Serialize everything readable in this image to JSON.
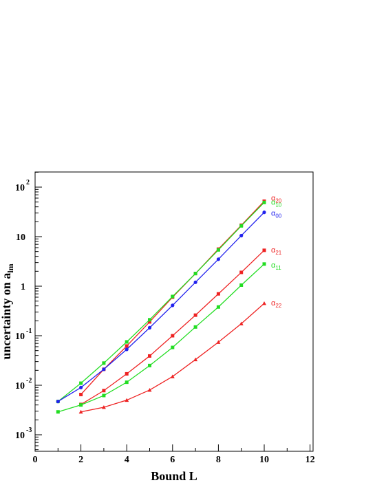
{
  "chart_data": {
    "type": "line",
    "title": "",
    "xlabel": "Bound L",
    "ylabel": "uncertainty on a",
    "ylabel_sub": "lm",
    "xlim": [
      0,
      12
    ],
    "ylim": [
      0.0005,
      200
    ],
    "yscale": "log",
    "grid": false,
    "x_ticks": [
      0,
      2,
      4,
      6,
      8,
      10,
      12
    ],
    "y_ticks": [
      {
        "value": 0.001,
        "base": "10",
        "exp": "-3"
      },
      {
        "value": 0.01,
        "base": "10",
        "exp": "-2"
      },
      {
        "value": 0.1,
        "base": "10",
        "exp": "-1"
      },
      {
        "value": 1,
        "base": "1",
        "exp": ""
      },
      {
        "value": 10,
        "base": "10",
        "exp": ""
      },
      {
        "value": 100,
        "base": "10",
        "exp": "2"
      }
    ],
    "series": [
      {
        "name": "α",
        "sub": "20",
        "color": "#ee2222",
        "marker": "square",
        "x": [
          2,
          3,
          4,
          5,
          6,
          7,
          8,
          9,
          10
        ],
        "values": [
          0.0065,
          0.021,
          0.062,
          0.19,
          0.6,
          1.8,
          5.6,
          17,
          52
        ]
      },
      {
        "name": "α",
        "sub": "10",
        "color": "#22dd22",
        "marker": "square",
        "x": [
          1,
          2,
          3,
          4,
          5,
          6,
          7,
          8,
          9,
          10
        ],
        "values": [
          0.0047,
          0.011,
          0.028,
          0.075,
          0.21,
          0.62,
          1.8,
          5.4,
          16.5,
          49
        ]
      },
      {
        "name": "α",
        "sub": "00",
        "color": "#2222ee",
        "marker": "circle",
        "x": [
          1,
          2,
          3,
          4,
          5,
          6,
          7,
          8,
          9,
          10
        ],
        "values": [
          0.0047,
          0.009,
          0.021,
          0.053,
          0.145,
          0.41,
          1.2,
          3.5,
          10.5,
          31
        ]
      },
      {
        "name": "α",
        "sub": "21",
        "color": "#ee2222",
        "marker": "square",
        "x": [
          2,
          3,
          4,
          5,
          6,
          7,
          8,
          9,
          10
        ],
        "values": [
          0.0041,
          0.0078,
          0.017,
          0.039,
          0.1,
          0.26,
          0.7,
          1.9,
          5.3
        ]
      },
      {
        "name": "α",
        "sub": "11",
        "color": "#22dd22",
        "marker": "square",
        "x": [
          1,
          2,
          3,
          4,
          5,
          6,
          7,
          8,
          9,
          10
        ],
        "values": [
          0.0029,
          0.004,
          0.0062,
          0.0115,
          0.025,
          0.058,
          0.15,
          0.38,
          1.05,
          2.8
        ]
      },
      {
        "name": "α",
        "sub": "22",
        "color": "#ee2222",
        "marker": "triangle",
        "x": [
          2,
          3,
          4,
          5,
          6,
          7,
          8,
          9,
          10
        ],
        "values": [
          0.0029,
          0.0036,
          0.005,
          0.008,
          0.015,
          0.033,
          0.074,
          0.175,
          0.45
        ]
      }
    ]
  }
}
